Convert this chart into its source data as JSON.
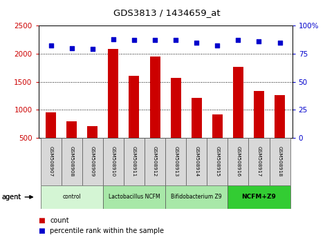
{
  "title": "GDS3813 / 1434659_at",
  "samples": [
    "GSM508907",
    "GSM508908",
    "GSM508909",
    "GSM508910",
    "GSM508911",
    "GSM508912",
    "GSM508913",
    "GSM508914",
    "GSM508915",
    "GSM508916",
    "GSM508917",
    "GSM508918"
  ],
  "counts": [
    960,
    800,
    710,
    2080,
    1600,
    1950,
    1570,
    1210,
    920,
    1760,
    1330,
    1260
  ],
  "percentile_ranks": [
    82,
    80,
    79,
    88,
    87,
    87,
    87,
    85,
    82,
    87,
    86,
    85
  ],
  "ylim_left": [
    500,
    2500
  ],
  "ylim_right": [
    0,
    100
  ],
  "yticks_left": [
    500,
    1000,
    1500,
    2000,
    2500
  ],
  "yticks_right": [
    0,
    25,
    50,
    75,
    100
  ],
  "bar_color": "#cc0000",
  "dot_color": "#0000cc",
  "bar_width": 0.5,
  "groups": [
    {
      "label": "control",
      "start": 0,
      "end": 3,
      "color": "#d4f5d4"
    },
    {
      "label": "Lactobacillus NCFM",
      "start": 3,
      "end": 6,
      "color": "#a8e8a8"
    },
    {
      "label": "Bifidobacterium Z9",
      "start": 6,
      "end": 9,
      "color": "#a8e8a8"
    },
    {
      "label": "NCFM+Z9",
      "start": 9,
      "end": 12,
      "color": "#33cc33"
    }
  ],
  "sample_box_color": "#d8d8d8",
  "left_axis_color": "#cc0000",
  "right_axis_color": "#0000cc"
}
